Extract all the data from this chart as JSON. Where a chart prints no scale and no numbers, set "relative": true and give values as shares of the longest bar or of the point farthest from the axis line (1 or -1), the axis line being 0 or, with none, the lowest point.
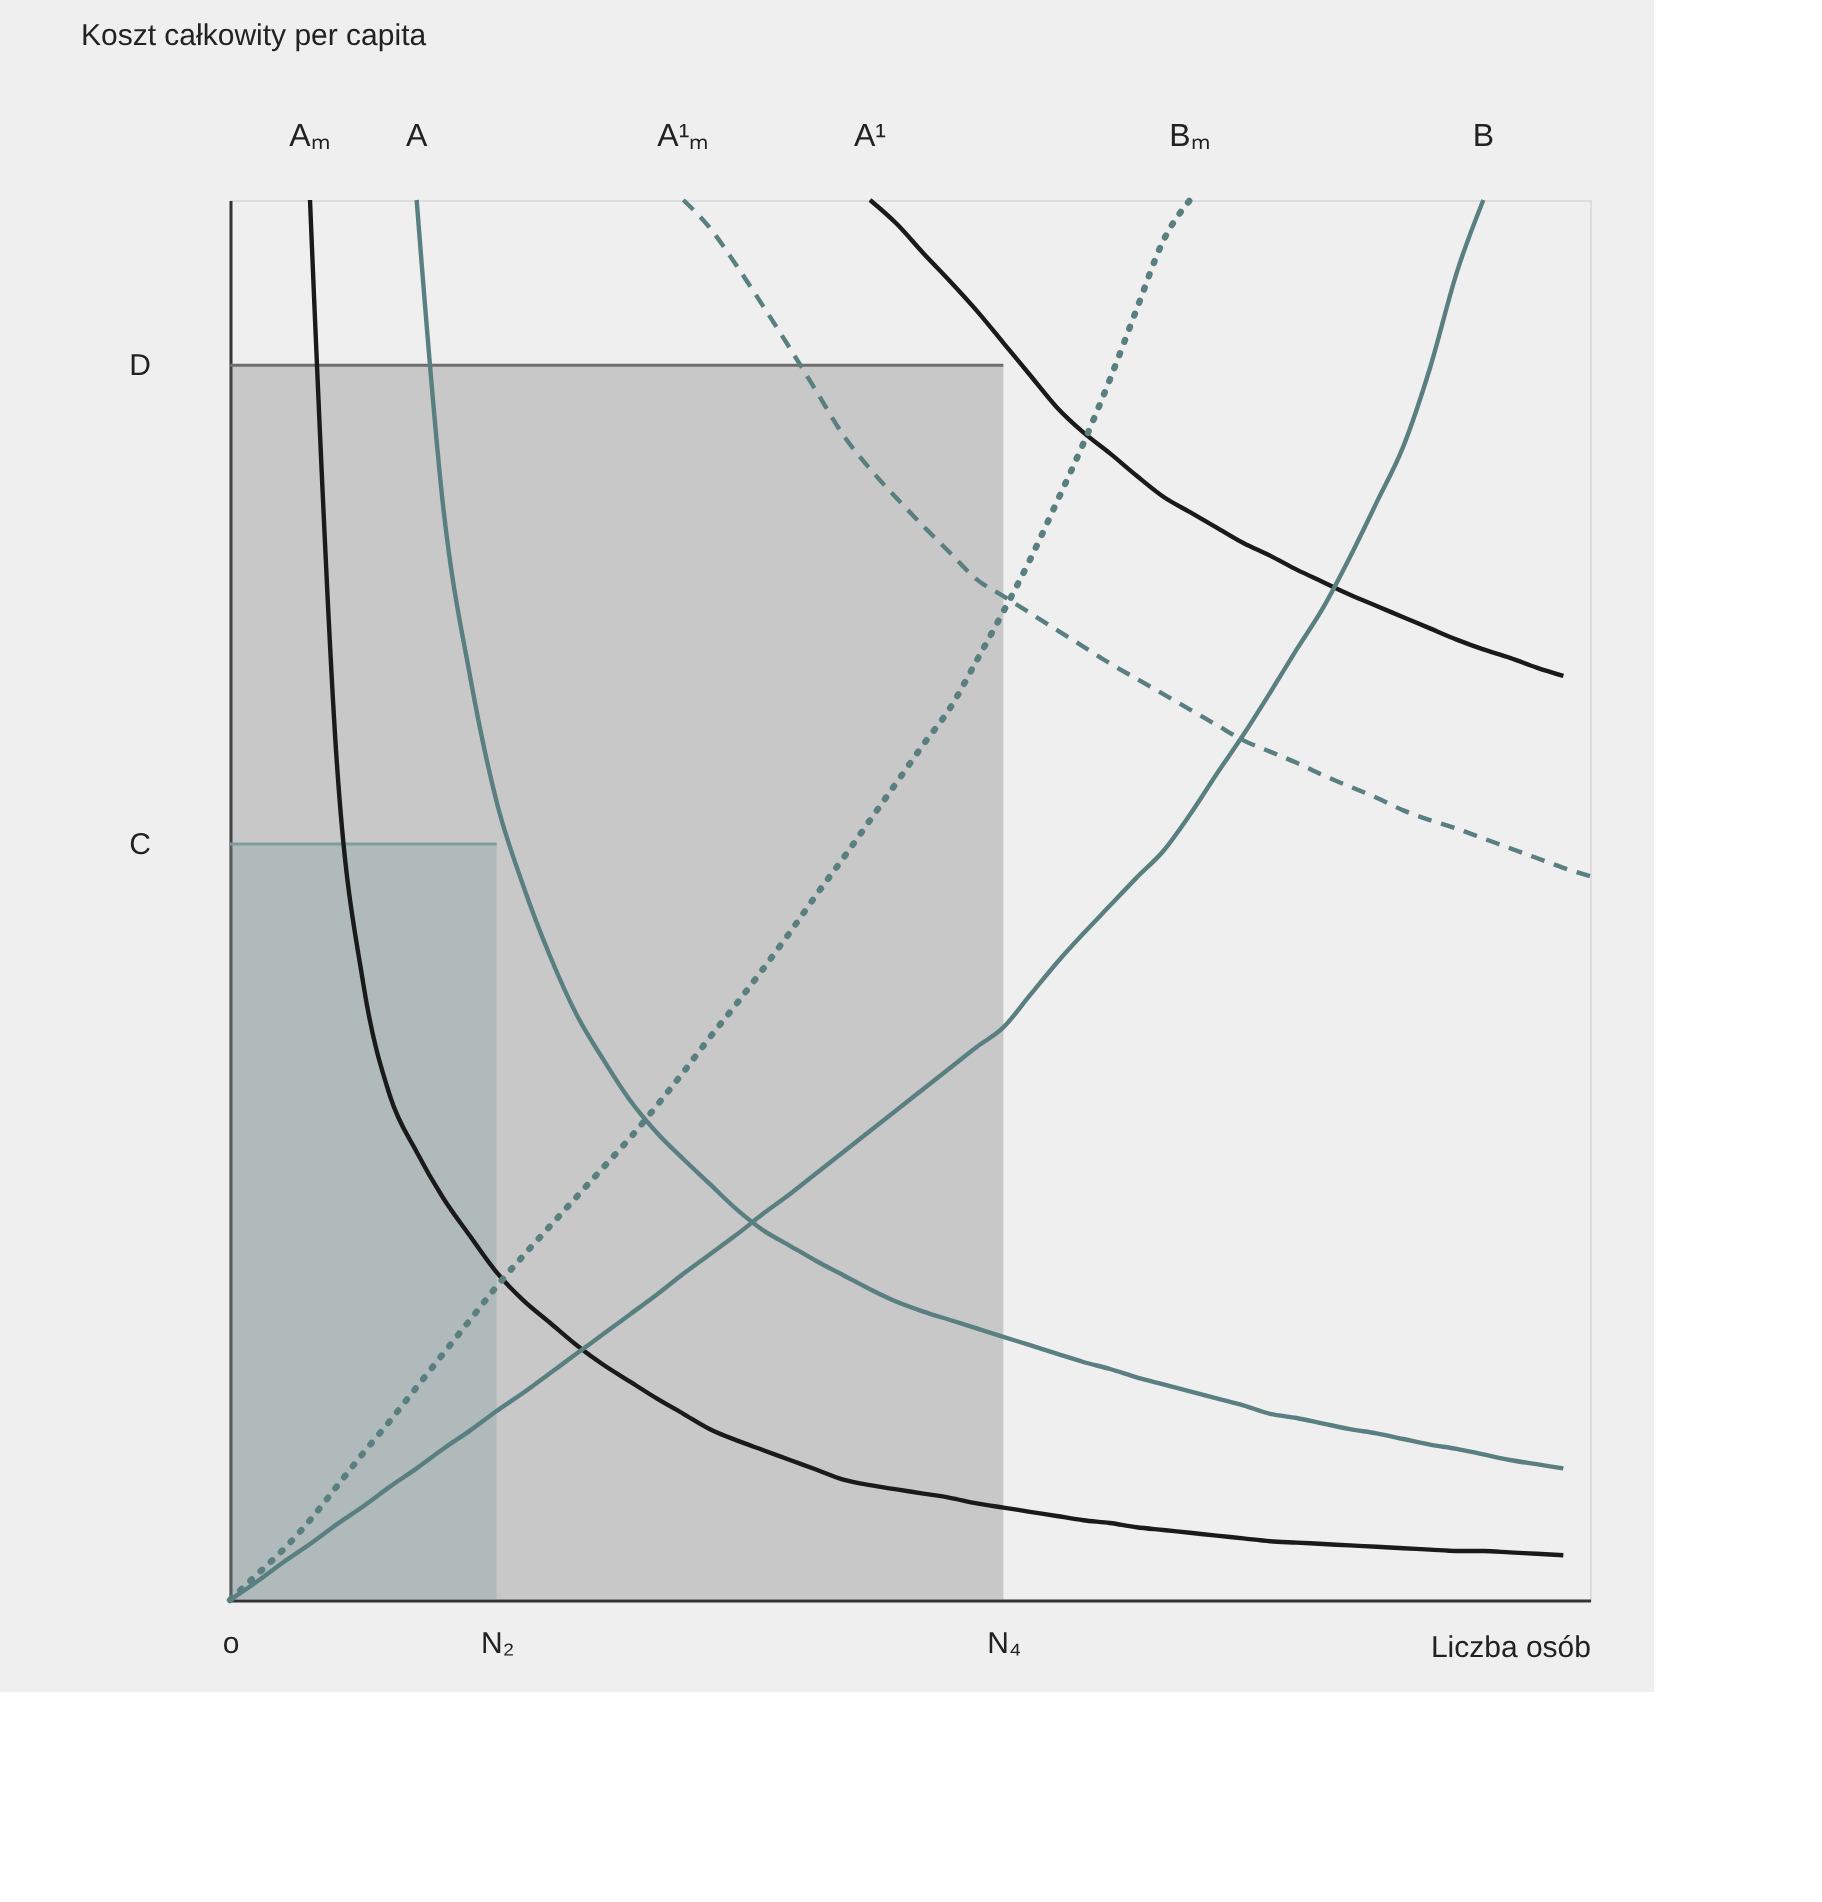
{
  "chart_data": {
    "type": "line",
    "relative": true,
    "ylabel": "Koszt całkowity per capita",
    "xlabel": "Liczba osób",
    "categories": [
      "o",
      null,
      null,
      null,
      null,
      null,
      null,
      null,
      null,
      null,
      "N₂",
      null,
      null,
      null,
      null,
      null,
      null,
      null,
      null,
      null,
      null,
      null,
      null,
      null,
      null,
      null,
      null,
      null,
      null,
      "N₄",
      null,
      null,
      null,
      null,
      null,
      null,
      null,
      null,
      null,
      null,
      null,
      null,
      null,
      null,
      null,
      null,
      null,
      null,
      null,
      null,
      null,
      null
    ],
    "ref_lines": [
      {
        "axis": "y",
        "value": 0.882,
        "label": "D",
        "color": "#6e6e6e"
      },
      {
        "axis": "y",
        "value": 0.54,
        "label": "C",
        "color": "#7f9c9c"
      }
    ],
    "bands": [
      {
        "axis": "y",
        "from": 0,
        "to": 0.882,
        "color": "#6e6e6e"
      },
      {
        "axis": "x",
        "from": "o",
        "to": "N₂",
        "color": "#7f9c9c"
      }
    ],
    "grid": false,
    "marker": "none",
    "series": [
      {
        "name": "Aₘ",
        "color": "#1a1a1a",
        "line_style": "solid",
        "values": [
          null,
          null,
          null,
          1.0,
          0.6,
          0.44,
          0.36,
          0.32,
          0.287,
          0.26,
          0.234,
          0.214,
          0.198,
          0.182,
          0.168,
          0.156,
          0.144,
          0.133,
          0.122,
          0.114,
          0.107,
          0.1,
          0.093,
          0.086,
          0.082,
          0.079,
          0.076,
          0.073,
          0.069,
          0.066,
          0.063,
          0.06,
          0.057,
          0.055,
          0.052,
          0.05,
          0.048,
          0.046,
          0.044,
          0.042,
          0.041,
          0.04,
          0.039,
          0.038,
          0.037,
          0.036,
          0.035,
          0.035,
          0.034,
          0.033,
          0.032,
          null
        ]
      },
      {
        "name": "A",
        "color": "#5a7f80",
        "line_style": "solid",
        "values": [
          null,
          null,
          null,
          null,
          null,
          null,
          null,
          1.0,
          0.78,
          0.66,
          0.57,
          0.51,
          0.46,
          0.418,
          0.386,
          0.357,
          0.334,
          0.315,
          0.297,
          0.279,
          0.264,
          0.253,
          0.242,
          0.232,
          0.222,
          0.213,
          0.206,
          0.2,
          0.194,
          0.188,
          0.182,
          0.176,
          0.17,
          0.165,
          0.159,
          0.154,
          0.149,
          0.144,
          0.139,
          0.133,
          0.13,
          0.126,
          0.122,
          0.119,
          0.115,
          0.111,
          0.108,
          0.104,
          0.1,
          0.097,
          0.094,
          null
        ]
      },
      {
        "name": "A¹ₘ",
        "color": "#5a7f80",
        "line_style": "dashed",
        "values": [
          null,
          null,
          null,
          null,
          null,
          null,
          null,
          null,
          null,
          null,
          null,
          null,
          null,
          null,
          null,
          null,
          null,
          1.0,
          0.98,
          0.953,
          0.924,
          0.894,
          0.863,
          0.832,
          0.808,
          0.787,
          0.767,
          0.748,
          0.729,
          0.717,
          0.705,
          0.693,
          0.681,
          0.669,
          0.658,
          0.647,
          0.636,
          0.625,
          0.614,
          0.606,
          0.598,
          0.589,
          0.581,
          0.573,
          0.564,
          0.557,
          0.551,
          0.544,
          0.537,
          0.53,
          0.523,
          0.517
        ]
      },
      {
        "name": "A¹",
        "color": "#1a1a1a",
        "line_style": "solid",
        "values": [
          null,
          null,
          null,
          null,
          null,
          null,
          null,
          null,
          null,
          null,
          null,
          null,
          null,
          null,
          null,
          null,
          null,
          null,
          null,
          null,
          null,
          null,
          null,
          null,
          1.0,
          0.983,
          0.962,
          0.942,
          0.921,
          0.898,
          0.875,
          0.852,
          0.834,
          0.819,
          0.803,
          0.788,
          0.777,
          0.766,
          0.755,
          0.746,
          0.736,
          0.727,
          0.718,
          0.71,
          0.702,
          0.694,
          0.686,
          0.679,
          0.673,
          0.666,
          0.66,
          null
        ]
      },
      {
        "name": "Bₘ",
        "color": "#5a7f80",
        "line_style": "dotted",
        "values": [
          0,
          0.018,
          0.036,
          0.057,
          0.081,
          0.105,
          0.128,
          0.152,
          0.176,
          0.2,
          0.224,
          0.246,
          0.267,
          0.288,
          0.309,
          0.33,
          0.353,
          0.377,
          0.402,
          0.426,
          0.451,
          0.477,
          0.504,
          0.53,
          0.557,
          0.584,
          0.611,
          0.637,
          0.671,
          0.706,
          0.743,
          0.784,
          0.826,
          0.872,
          0.922,
          0.971,
          1.0,
          null,
          null,
          null,
          null,
          null,
          null,
          null,
          null,
          null,
          null,
          null,
          null,
          null,
          null,
          null
        ]
      },
      {
        "name": "B",
        "color": "#5a7f80",
        "line_style": "solid",
        "values": [
          0,
          0.013,
          0.027,
          0.04,
          0.054,
          0.067,
          0.081,
          0.094,
          0.108,
          0.121,
          0.135,
          0.148,
          0.162,
          0.176,
          0.19,
          0.204,
          0.218,
          0.233,
          0.247,
          0.261,
          0.276,
          0.29,
          0.305,
          0.32,
          0.335,
          0.35,
          0.365,
          0.38,
          0.395,
          0.409,
          0.432,
          0.455,
          0.476,
          0.496,
          0.516,
          0.535,
          0.561,
          0.59,
          0.618,
          0.648,
          0.679,
          0.709,
          0.745,
          0.784,
          0.824,
          0.88,
          0.948,
          1.0,
          null,
          null,
          null,
          null
        ]
      }
    ]
  }
}
